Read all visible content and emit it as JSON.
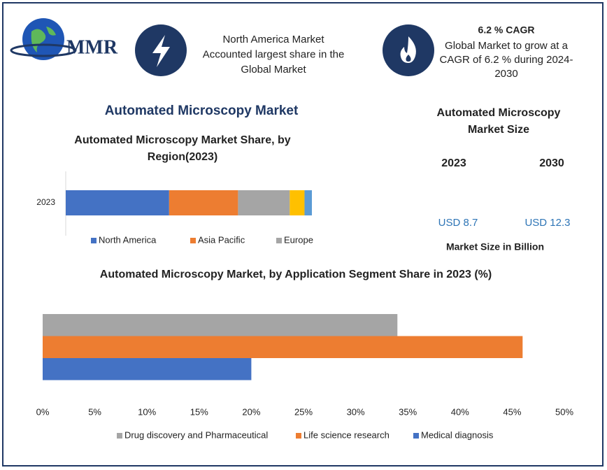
{
  "header": {
    "logo": "MMR",
    "highlight_lines": [
      "North America Market",
      "Accounted largest share in the",
      "Global Market"
    ],
    "cagr_title": "6.2 % CAGR",
    "cagr_lines": [
      "Global Market to grow at a",
      "CAGR of 6.2 % during 2024-",
      "2030"
    ]
  },
  "main_title": "Automated Microscopy Market",
  "market_size": {
    "title_lines": [
      "Automated Microscopy",
      "Market Size"
    ],
    "years": [
      "2023",
      "2030"
    ],
    "values": [
      "USD 8.7",
      "USD 12.3"
    ],
    "note": "Market Size in Billion"
  },
  "chart_data": [
    {
      "type": "stacked_bar",
      "title_lines": [
        "Automated Microscopy  Market Share, by",
        "Region(2023)"
      ],
      "categories": [
        "2023"
      ],
      "xlim": [
        0,
        100
      ],
      "series": [
        {
          "name": "North America",
          "color": "#4472c4",
          "values": [
            42
          ]
        },
        {
          "name": "Asia Pacific",
          "color": "#ed7d31",
          "values": [
            28
          ]
        },
        {
          "name": "Europe",
          "color": "#a5a5a5",
          "values": [
            21
          ]
        },
        {
          "color": "#ffc000",
          "values": [
            6
          ]
        },
        {
          "color": "#5b9bd5",
          "values": [
            3
          ]
        }
      ]
    },
    {
      "type": "bar",
      "title": "Automated Microscopy Market, by Application Segment Share in 2023 (%)",
      "categories": [
        null
      ],
      "xlim": [
        0,
        50
      ],
      "xticks": [
        {
          "value": 0,
          "label": "0%"
        },
        {
          "value": 5,
          "label": "5%"
        },
        {
          "value": 10,
          "label": "10%"
        },
        {
          "value": 15,
          "label": "15%"
        },
        {
          "value": 20,
          "label": "20%"
        },
        {
          "value": 25,
          "label": "25%"
        },
        {
          "value": 30,
          "label": "30%"
        },
        {
          "value": 35,
          "label": "35%"
        },
        {
          "value": 40,
          "label": "40%"
        },
        {
          "value": 45,
          "label": "45%"
        },
        {
          "value": 50,
          "label": "50%"
        }
      ],
      "series": [
        {
          "name": "Drug discovery and Pharmaceutical",
          "color": "#a5a5a5",
          "values": [
            34
          ]
        },
        {
          "name": "Life science research",
          "color": "#ed7d31",
          "values": [
            46
          ]
        },
        {
          "name": "Medical diagnosis",
          "color": "#4472c4",
          "values": [
            20
          ]
        }
      ]
    }
  ]
}
